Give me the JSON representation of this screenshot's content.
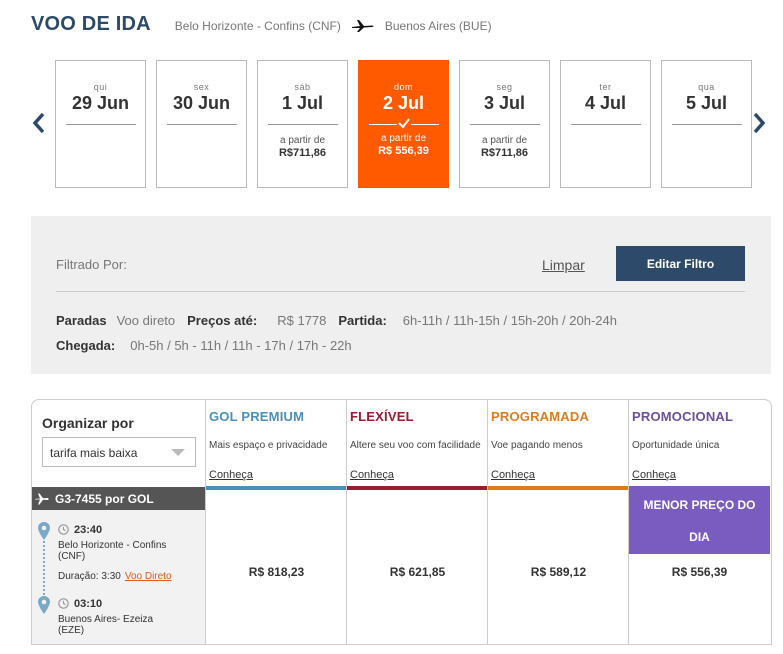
{
  "header": {
    "title": "VOO DE IDA",
    "origin": "Belo Horizonte - Confins  (CNF)",
    "destination": "Buenos Aires  (BUE)"
  },
  "dates": [
    {
      "dow": "qui",
      "day": "29 Jun",
      "from": "",
      "price": ""
    },
    {
      "dow": "sex",
      "day": "30 Jun",
      "from": "",
      "price": ""
    },
    {
      "dow": "sáb",
      "day": "1 Jul",
      "from": "a partir de",
      "price": "R$711,86"
    },
    {
      "dow": "dom",
      "day": "2 Jul",
      "from": "a partir de",
      "price": "R$ 556,39",
      "selected": true
    },
    {
      "dow": "seg",
      "day": "3 Jul",
      "from": "a partir de",
      "price": "R$711,86"
    },
    {
      "dow": "ter",
      "day": "4 Jul",
      "from": "",
      "price": ""
    },
    {
      "dow": "qua",
      "day": "5 Jul",
      "from": "",
      "price": ""
    }
  ],
  "filter": {
    "label": "Filtrado Por:",
    "clear": "Limpar",
    "edit": "Editar Filtro",
    "stops_label": "Paradas",
    "stops_value": "Voo direto",
    "price_label": "Preços até:",
    "price_value": "R$ 1778",
    "departure_label": "Partida:",
    "departure_value": "6h-11h / 11h-15h / 15h-20h / 20h-24h",
    "arrival_label": "Chegada:",
    "arrival_value": "0h-5h / 5h - 11h / 11h - 17h / 17h - 22h"
  },
  "sort": {
    "title": "Organizar por",
    "selected": "tarifa mais baixa"
  },
  "fares": {
    "premium": {
      "name": "GOL PREMIUM",
      "desc": "Mais espaço e privacidade",
      "more": "Conheça",
      "price": "R$ 818,23",
      "color": "#4a90b8"
    },
    "flex": {
      "name": "FLEXÍVEL",
      "desc": "Altere seu voo com facilidade",
      "more": "Conheça",
      "price": "R$ 621,85",
      "color": "#9b1b30"
    },
    "prog": {
      "name": "PROGRAMADA",
      "desc": "Voe pagando menos",
      "more": "Conheça",
      "price": "R$ 589,12",
      "color": "#e07b1a"
    },
    "promo": {
      "name": "PROMOCIONAL",
      "desc": "Oportunidade única",
      "more": "Conheça",
      "price": "R$ 556,39",
      "color": "#6c4fa0",
      "badge_line1": "MENOR  PREÇO DO",
      "badge_line2": "DIA"
    }
  },
  "flight": {
    "number": "G3-7455 por  GOL",
    "depart_time": "23:40",
    "depart_place": "Belo Horizonte - Confins (CNF)",
    "duration": "Duração: 3:30",
    "direct": "Voo Direto",
    "arrive_time": "03:10",
    "arrive_place": "Buenos Aires- Ezeiza (EZE)"
  },
  "icons": {
    "plane": "airplane-icon",
    "arrow_left": "chevron-left-icon",
    "arrow_right": "chevron-right-icon",
    "check": "check-icon",
    "pin": "location-pin-icon",
    "clock": "clock-icon"
  },
  "colors": {
    "primary": "#2e4a6b",
    "accent": "#ff5a00",
    "badge": "#7a5cc0"
  }
}
